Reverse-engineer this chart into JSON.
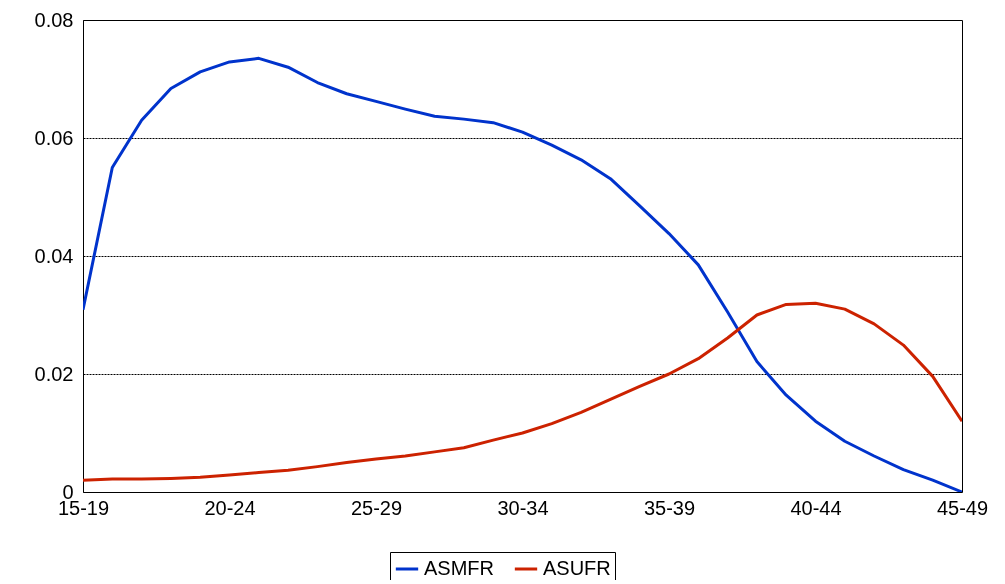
{
  "chart_data": {
    "type": "line",
    "categories": [
      "15-19",
      null,
      null,
      null,
      null,
      "20-24",
      null,
      null,
      null,
      null,
      "25-29",
      null,
      null,
      null,
      null,
      "30-34",
      null,
      null,
      null,
      null,
      "35-39",
      null,
      null,
      null,
      null,
      "40-44",
      null,
      null,
      null,
      null,
      "45-49"
    ],
    "ylim": [
      0,
      0.08
    ],
    "yticks": [
      0,
      0.02,
      0.04,
      0.06,
      0.08
    ],
    "grid": "y",
    "legend": "bottom",
    "marker": "none",
    "line_style": "solid",
    "series": [
      {
        "name": "ASMFR",
        "color": "#0033cc",
        "values": [
          0.0309,
          0.055,
          0.063,
          0.0684,
          0.0712,
          0.0729,
          0.0735,
          0.072,
          0.0694,
          0.0675,
          0.0662,
          0.0649,
          0.0637,
          0.0632,
          0.0626,
          0.061,
          0.0588,
          0.0563,
          0.0531,
          0.0485,
          0.0438,
          0.0385,
          0.0305,
          0.0221,
          0.0164,
          0.012,
          0.0086,
          0.0061,
          0.0038,
          0.002,
          0
        ]
      },
      {
        "name": "ASUFR",
        "color": "#cc2200",
        "values": [
          0.002,
          0.0022,
          0.0022,
          0.0023,
          0.0025,
          0.0029,
          0.0033,
          0.0037,
          0.0043,
          0.005,
          0.0056,
          0.0061,
          0.0068,
          0.0075,
          0.0088,
          0.01,
          0.0116,
          0.0135,
          0.0157,
          0.0179,
          0.02,
          0.0226,
          0.0261,
          0.03,
          0.0318,
          0.032,
          0.031,
          0.0285,
          0.0249,
          0.0196,
          0.012
        ]
      }
    ]
  }
}
